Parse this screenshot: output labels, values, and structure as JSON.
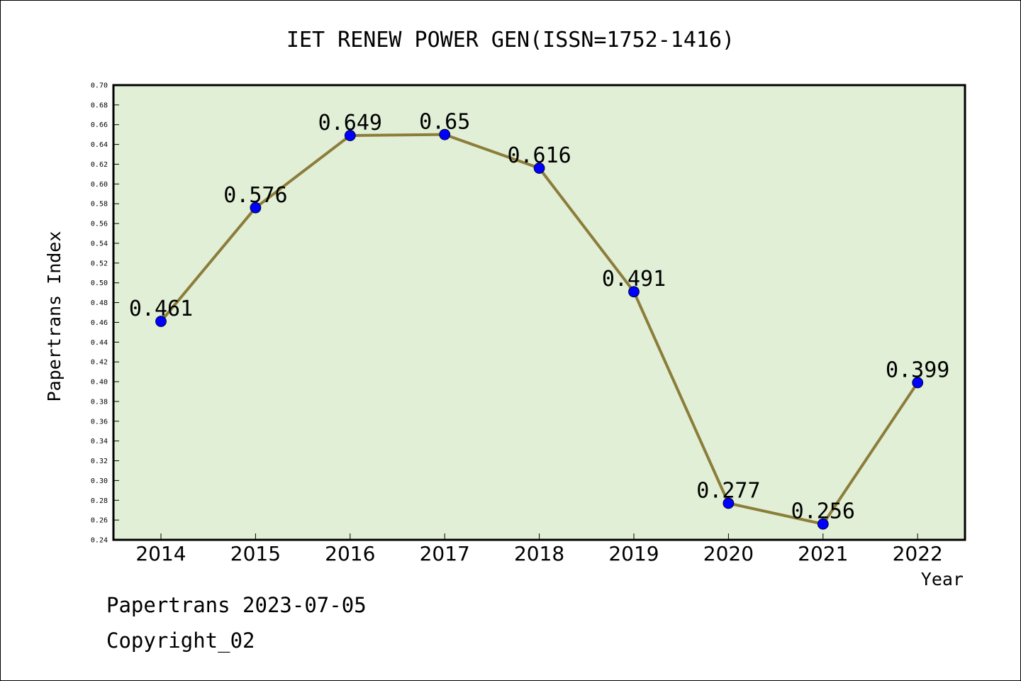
{
  "chart_data": {
    "type": "line",
    "title": "IET RENEW POWER GEN(ISSN=1752-1416)",
    "xlabel": "Year",
    "ylabel": "Papertrans Index",
    "categories": [
      "2014",
      "2015",
      "2016",
      "2017",
      "2018",
      "2019",
      "2020",
      "2021",
      "2022"
    ],
    "series": [
      {
        "values": [
          0.461,
          0.576,
          0.649,
          0.65,
          0.616,
          0.491,
          0.277,
          0.256,
          0.399
        ],
        "labels": [
          "0.461",
          "0.576",
          "0.649",
          "0.65",
          "0.616",
          "0.491",
          "0.277",
          "0.256",
          "0.399"
        ]
      }
    ],
    "ylim": [
      0.24,
      0.7
    ],
    "yticks": [
      "0.24",
      "0.26",
      "0.28",
      "0.30",
      "0.32",
      "0.34",
      "0.36",
      "0.38",
      "0.40",
      "0.42",
      "0.44",
      "0.46",
      "0.48",
      "0.50",
      "0.52",
      "0.54",
      "0.56",
      "0.58",
      "0.60",
      "0.62",
      "0.64",
      "0.66",
      "0.68",
      "0.70"
    ],
    "grid": false,
    "colors": {
      "plot_background": "#e1efd6",
      "line": "#8b7d3a",
      "marker": "#0000ff",
      "axes": "#000000"
    }
  },
  "footer": {
    "line1": "Papertrans 2023-07-05",
    "line2": "Copyright_02"
  }
}
